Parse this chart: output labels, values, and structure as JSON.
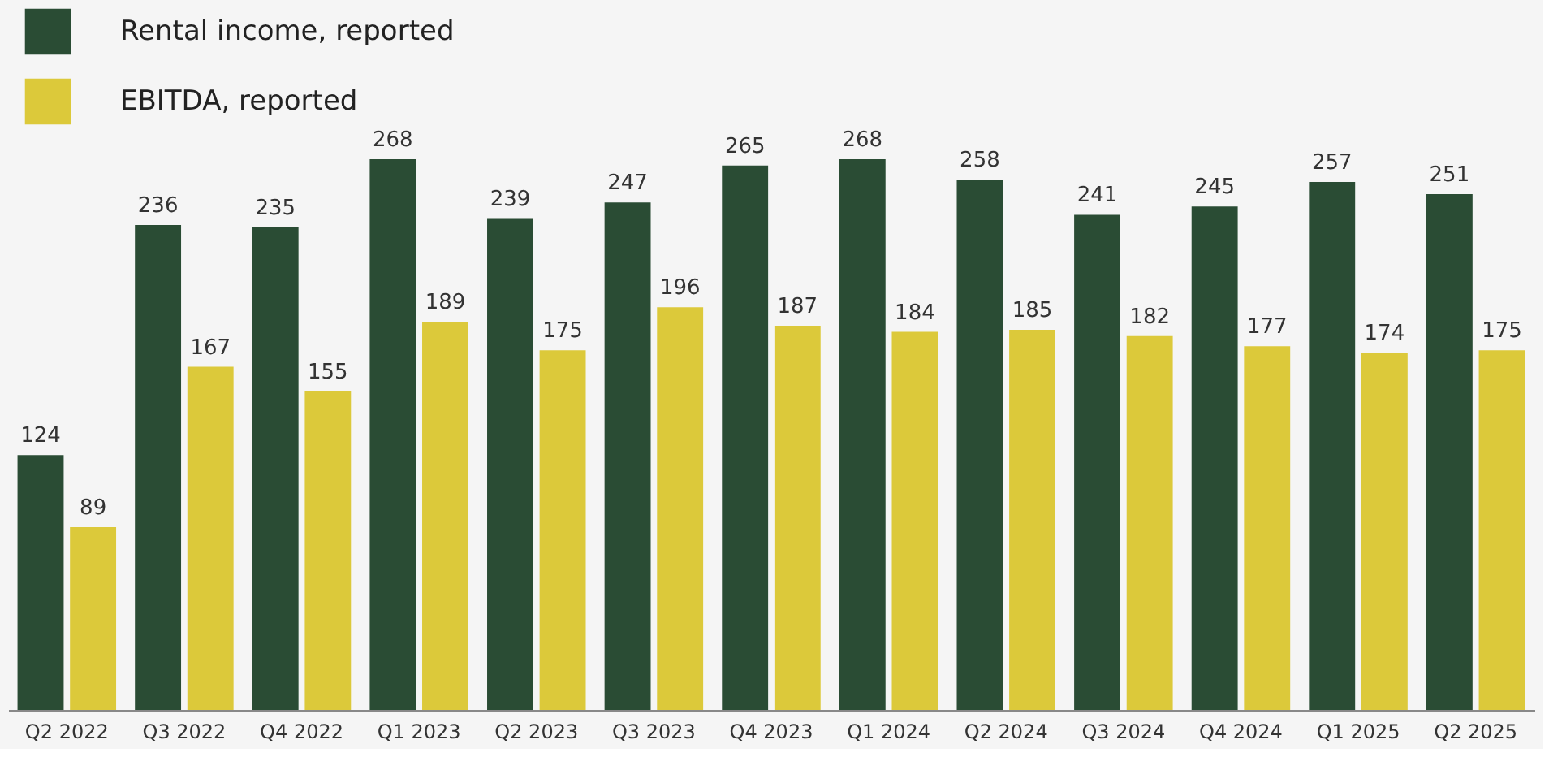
{
  "chart_data": {
    "type": "bar",
    "categories": [
      "Q2 2022",
      "Q3 2022",
      "Q4 2022",
      "Q1 2023",
      "Q2 2023",
      "Q3 2023",
      "Q4 2023",
      "Q1 2024",
      "Q2 2024",
      "Q3 2024",
      "Q4 2024",
      "Q1 2025",
      "Q2 2025"
    ],
    "series": [
      {
        "name": "Rental income, reported",
        "color": "#2a4c34",
        "values": [
          124,
          236,
          235,
          268,
          239,
          247,
          265,
          268,
          258,
          241,
          245,
          257,
          251
        ]
      },
      {
        "name": "EBITDA, reported",
        "color": "#dcc93a",
        "values": [
          89,
          167,
          155,
          189,
          175,
          196,
          187,
          184,
          185,
          182,
          177,
          174,
          175
        ]
      }
    ],
    "ylim": [
      0,
      340
    ],
    "data_labels": true,
    "legend": "top left",
    "tick_labels": "x"
  }
}
